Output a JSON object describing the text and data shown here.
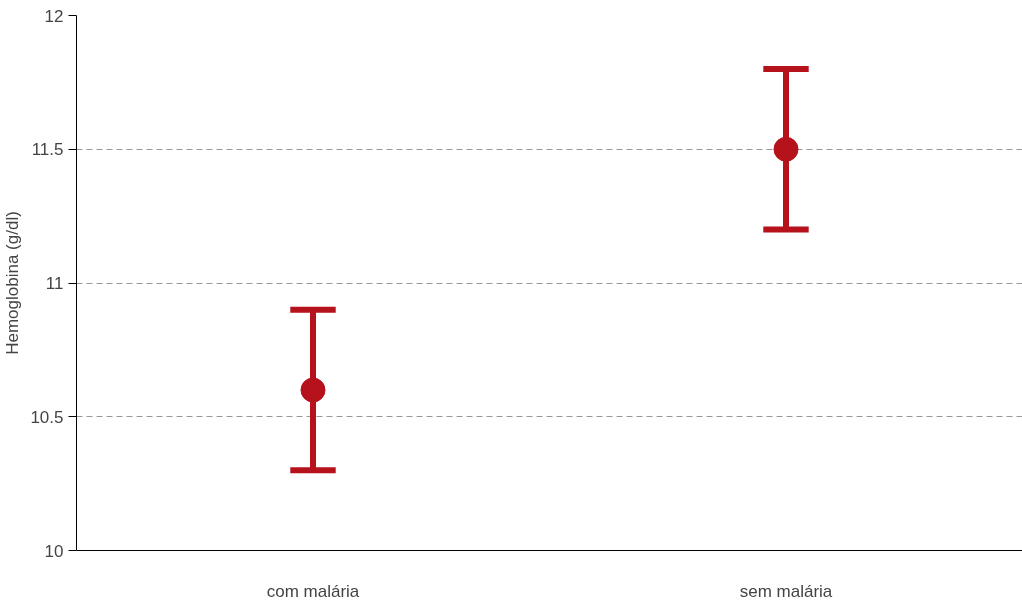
{
  "chart_data": {
    "type": "scatter",
    "ylabel": "Hemoglobina (g/dl)",
    "categories": [
      "com malária",
      "sem malária"
    ],
    "values": [
      10.6,
      11.5
    ],
    "errors": [
      0.3,
      0.3
    ],
    "color": "#b5121b",
    "marker": "circle",
    "ylim": [
      10,
      12
    ],
    "yticks": [
      10,
      10.5,
      11,
      11.5,
      12
    ],
    "grid": "y"
  }
}
